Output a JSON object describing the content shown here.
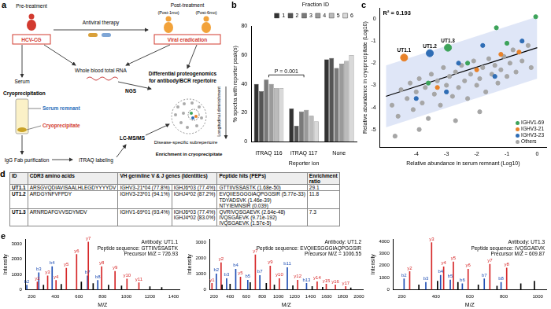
{
  "diagram": {
    "panel": "a",
    "pre_treatment": "Pre-treatment",
    "patient": "HCV-CG",
    "therapy": "Antiviral therapy",
    "post_treatment": "Post-treatment",
    "post_1mo": "(Post-1mo)",
    "post_6mo": "(Post-6mo)",
    "eradication": "Viral eradication",
    "rna": "Whole blood total RNA",
    "proteogenomics": [
      "Differential proteogenomics",
      "for antibody/BCR repertoire"
    ],
    "serum": "Serum",
    "ngs": "NGS",
    "cryoprecipitation": "Cryoprecipitation",
    "serum_remnant": "Serum remnant",
    "cryoprecipitate": "Cryoprecipitate",
    "fab": "IgG Fab purification",
    "itraq": "iTRAQ labeling",
    "lcms": "LC-MS/MS",
    "diminishment": "Longitudinal diminishment",
    "subrepertoire": "Disease-specific subrepertoire",
    "enrichment": "Enrichment in cryoprecipitate"
  },
  "chart_data": [
    {
      "panel": "b",
      "type": "bar",
      "categories": [
        "iTRAQ 116",
        "iTRAQ 117",
        "None"
      ],
      "series": [
        {
          "name": "1",
          "color": "#333333",
          "values": [
            40,
            23,
            57
          ]
        },
        {
          "name": "2",
          "color": "#555555",
          "values": [
            35,
            11,
            58
          ]
        },
        {
          "name": "3",
          "color": "#7a7a7a",
          "values": [
            43,
            21,
            51
          ]
        },
        {
          "name": "4",
          "color": "#9a9a9a",
          "values": [
            40,
            22,
            54
          ]
        },
        {
          "name": "5",
          "color": "#bbbbbb",
          "values": [
            37,
            18,
            56
          ]
        },
        {
          "name": "6",
          "color": "#d9d9d9",
          "values": [
            37,
            14,
            60
          ]
        }
      ],
      "legend_title": "Fraction ID",
      "legend": "top right",
      "x_label": "Reporter ion",
      "y_label": "% spectra with reporter peak(s)",
      "ylim": [
        0,
        80
      ],
      "yticks": [
        0,
        20,
        40,
        60,
        80
      ],
      "grid": false,
      "annotation": {
        "text": "P = 0.001",
        "from": "iTRAQ 116",
        "to": "iTRAQ 117"
      }
    },
    {
      "panel": "c",
      "type": "scatter",
      "x_label": "Relative abundance in serum remnant (Log10)",
      "y_label": "Relative abundance in cryoprecipitate (Log10)",
      "xlim": [
        -5.2,
        0.3
      ],
      "xticks": [
        -4,
        -3,
        -2,
        -1,
        0
      ],
      "ylim": [
        -5.8,
        0.5
      ],
      "yticks": [
        -5,
        -4,
        -3,
        -2,
        -1,
        0
      ],
      "grid": false,
      "legend": "bottom right",
      "annotation": {
        "text": "R² = 0.193"
      },
      "fit": {
        "x": [
          -5,
          0
        ],
        "y": [
          -3.5,
          -1.3
        ],
        "lower": [
          -4.9,
          -2.7
        ],
        "upper": [
          -2.1,
          0.1
        ]
      },
      "series": [
        {
          "name": "IGHV1-69",
          "color": "#3da35a",
          "marker": "circle",
          "x": [
            -2.95,
            -1.35,
            -0.05,
            -1.0,
            -2.3,
            -3.6
          ],
          "values": [
            -1.3,
            -0.4,
            0.1,
            -1.1,
            -2.0,
            -2.9
          ],
          "labels": [
            "UT1.3",
            null,
            null,
            null,
            null,
            null
          ]
        },
        {
          "name": "IGHV3-21",
          "color": "#e8822a",
          "marker": "circle",
          "x": [
            -4.4,
            -1.2,
            -2.0,
            -3.3,
            -0.6
          ],
          "values": [
            -1.75,
            -1.6,
            -2.3,
            -3.1,
            -1.5
          ],
          "labels": [
            "UT1.1",
            null,
            null,
            null,
            null
          ]
        },
        {
          "name": "IGHV3-23",
          "color": "#2f6db5",
          "marker": "circle",
          "x": [
            -3.55,
            -2.6,
            -1.8,
            -0.5,
            -3.0,
            -1.4,
            -4.0
          ],
          "values": [
            -1.55,
            -2.0,
            -1.2,
            -1.0,
            -3.3,
            -2.6,
            -3.6
          ],
          "labels": [
            "UT1.2",
            null,
            null,
            null,
            null,
            null,
            null
          ]
        },
        {
          "name": "Others",
          "color": "#a6a6a6",
          "marker": "circle",
          "x": [
            -4.8,
            -4.6,
            -4.5,
            -4.3,
            -4.2,
            -4.1,
            -4.0,
            -3.9,
            -3.8,
            -3.7,
            -3.6,
            -3.5,
            -3.4,
            -3.3,
            -3.2,
            -3.1,
            -3.0,
            -2.9,
            -2.8,
            -2.7,
            -2.6,
            -2.5,
            -2.4,
            -2.3,
            -2.2,
            -2.1,
            -2.0,
            -1.9,
            -1.8,
            -1.7,
            -1.6,
            -1.5,
            -1.4,
            -1.3,
            -1.2,
            -1.1,
            -1.0,
            -0.9,
            -0.8,
            -0.7,
            -0.5,
            -0.3,
            -0.2,
            -4.7,
            -3.9,
            -2.7,
            -1.9
          ],
          "values": [
            -3.9,
            -4.4,
            -3.2,
            -3.6,
            -2.9,
            -4.1,
            -3.3,
            -2.7,
            -3.8,
            -3.1,
            -4.5,
            -2.5,
            -3.4,
            -2.8,
            -3.9,
            -2.2,
            -3.0,
            -2.6,
            -3.5,
            -2.4,
            -3.1,
            -2.1,
            -2.8,
            -3.6,
            -2.5,
            -1.9,
            -3.0,
            -2.7,
            -2.2,
            -3.3,
            -1.8,
            -2.5,
            -2.1,
            -2.9,
            -2.3,
            -1.7,
            -2.6,
            -2.0,
            -1.4,
            -2.4,
            -1.9,
            -1.2,
            -2.2,
            -5.3,
            -5.0,
            -4.6,
            -4.2
          ]
        }
      ]
    },
    {
      "panel": "e",
      "type": "bar",
      "title": [
        "Antibody: UT1.1",
        "Peptide sequence: GTTIIVSSASTK",
        "Precursor M/Z = 726.93"
      ],
      "x_label": "M/Z",
      "y_label": "Intensity",
      "xlim": [
        150,
        1450
      ],
      "xticks": [
        200,
        400,
        600,
        800,
        1000,
        1200,
        1400
      ],
      "ylim": [
        0,
        3300
      ],
      "yticks": [
        0,
        1000,
        2000,
        3000
      ],
      "grid": false,
      "series": [
        {
          "color": "#000000",
          "x": [
            300,
            450,
            620,
            720,
            850,
            960,
            1200,
            1300
          ],
          "values": [
            300,
            350,
            500,
            400,
            300,
            250,
            200,
            150
          ]
        },
        {
          "color": "#d62728",
          "x": [
            248,
            335,
            406,
            493,
            580,
            679,
            792,
            905,
            1006,
            1107
          ],
          "values": [
            500,
            900,
            600,
            1400,
            2300,
            3100,
            1500,
            1200,
            700,
            450
          ],
          "labels": [
            "y2",
            "y3",
            "y4",
            "y5",
            "y6",
            "y7",
            "y8",
            "y9",
            "y10",
            "y11"
          ]
        },
        {
          "color": "#1f4eb4",
          "x": [
            159,
            260,
            373,
            672,
            759
          ],
          "values": [
            300,
            1100,
            1500,
            900,
            600
          ],
          "labels": [
            "b2",
            "b3",
            "b4",
            "b7",
            "b8"
          ]
        }
      ]
    },
    {
      "type": "bar",
      "title": [
        "Antibody: UT1.2",
        "Peptide sequence: EVQIIESGGGIAQPGGSIR",
        "Precursor M/Z = 1006.55"
      ],
      "x_label": "M/Z",
      "y_label": "Intensity",
      "xlim": [
        150,
        2050
      ],
      "xticks": [
        200,
        400,
        600,
        800,
        1000,
        1200,
        1400,
        1600,
        1800,
        2000
      ],
      "ylim": [
        0,
        3200
      ],
      "yticks": [
        0,
        1000,
        2000,
        3000
      ],
      "grid": false,
      "series": [
        {
          "color": "#000000",
          "x": [
            300,
            400,
            650,
            850,
            950,
            1180,
            1420,
            1550,
            1900
          ],
          "values": [
            300,
            350,
            450,
            400,
            300,
            250,
            200,
            150,
            120
          ]
        },
        {
          "color": "#d62728",
          "x": [
            175,
            288,
            529,
            714,
            899,
            1012,
            1240,
            1482,
            1595,
            1708,
            1837
          ],
          "values": [
            400,
            1700,
            800,
            2200,
            1500,
            700,
            600,
            500,
            350,
            300,
            200
          ],
          "labels": [
            "y1",
            "y2",
            "y5",
            "y7",
            "y9",
            "y10",
            "y12",
            "y14",
            "y15",
            "y16",
            "y17"
          ]
        },
        {
          "color": "#1f4eb4",
          "x": [
            229,
            357,
            470,
            620,
            770,
            1111,
            1350
          ],
          "values": [
            1000,
            700,
            1300,
            600,
            900,
            1400,
            400
          ],
          "labels": [
            "b2",
            "b3",
            "b4",
            "b5",
            "b7",
            "b11",
            "b13"
          ]
        }
      ]
    },
    {
      "type": "bar",
      "title": [
        "Antibody: UT1.3",
        "Peptide sequence: IVQSGAEVK",
        "Precursor M/Z = 609.87"
      ],
      "x_label": "M/Z",
      "y_label": "Intensity",
      "xlim": [
        150,
        1050
      ],
      "xticks": [
        200,
        400,
        600,
        800,
        1000
      ],
      "ylim": [
        0,
        4200
      ],
      "yticks": [
        0,
        1000,
        2000,
        3000,
        4000
      ],
      "grid": false,
      "series": [
        {
          "color": "#000000",
          "x": [
            300,
            410,
            530,
            650,
            760,
            900,
            980
          ],
          "values": [
            400,
            700,
            600,
            400,
            300,
            500,
            700
          ]
        },
        {
          "color": "#d62728",
          "x": [
            246,
            375,
            446,
            503,
            590,
            718,
            817
          ],
          "values": [
            1500,
            3900,
            1900,
            2300,
            1700,
            2100,
            1800
          ],
          "labels": [
            "y2",
            "y3",
            "y4",
            "y5",
            "y6",
            "y7",
            "y8"
          ]
        },
        {
          "color": "#1f4eb4",
          "x": [
            213,
            341,
            428,
            485,
            556,
            685,
            784
          ],
          "values": [
            900,
            600,
            1200,
            800,
            500,
            900,
            600
          ],
          "labels": [
            "b2",
            "b3",
            "b4",
            "b5",
            "b6",
            "b7",
            "b8"
          ]
        }
      ]
    }
  ],
  "table": {
    "panel": "d",
    "header": [
      "ID",
      "CDR3 amino acids",
      "VH germline V & J genes (Identities)",
      "Peptide hits (PEPs)",
      "Enrichment ratio"
    ],
    "rows": [
      {
        "id": "UT1.1",
        "cdr3": "ARSGVQDIAVISAALHLEGDYYYYDV",
        "v_gene": "IGHV3-21*04 (77.8%)",
        "j_genes": [
          "IGHJ6*03 (77.4%)"
        ],
        "peptides": [
          "GTTIIVSSASTK (1.68e-50)"
        ],
        "enrichment": 29.1
      },
      {
        "id": "UT1.2",
        "cdr3": "ARDGYNFVFPDY",
        "v_gene": "IGHV3-23*01 (94.1%)",
        "j_genes": [
          "IGHJ4*02 (87.2%)"
        ],
        "peptides": [
          "EVQIIESGGGIAQPGGSIR (5.77e-33)",
          "TDYADSVK (1.46e-39)",
          "NTYIEMNSIR (0.039)"
        ],
        "enrichment": 11.8
      },
      {
        "id": "UT1.3",
        "cdr3": "ARNRDAFGVVSDYMDV",
        "v_gene": "IGHV1-69*01 (93.4%)",
        "j_genes": [
          "IGHJ6*03 (77.4%)",
          "IGHJ4*02 (83.0%)"
        ],
        "peptides": [
          "QVRIVQSGAEVK (2.64e-48)",
          "IVQSGAEVK (9.71e-192)",
          "IVQSGAEVK (1.57e-5)"
        ],
        "enrichment": 7.3
      }
    ]
  }
}
